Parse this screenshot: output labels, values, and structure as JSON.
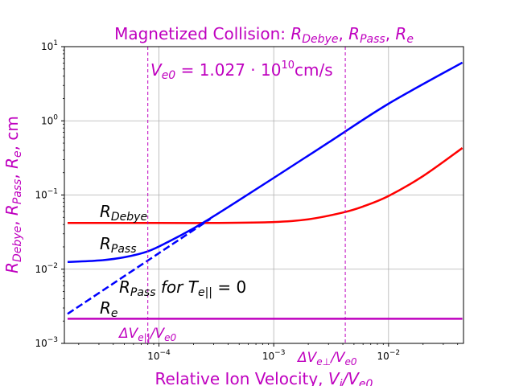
{
  "chart_data": {
    "type": "line",
    "title": "Magnetized Collision: R_Debye, R_Pass, R_e",
    "xlabel": "Relative Ion Velocity, V_i/V_e0",
    "ylabel": "R_Debye, R_Pass, R_e, cm",
    "xscale": "log",
    "yscale": "log",
    "xlim": [
      1.5e-05,
      0.045
    ],
    "ylim": [
      0.001,
      10
    ],
    "grid": true,
    "x_ticks": [
      {
        "value": 0.0001,
        "base": "10",
        "exp": "−4"
      },
      {
        "value": 0.001,
        "base": "10",
        "exp": "−3"
      },
      {
        "value": 0.01,
        "base": "10",
        "exp": "−2"
      }
    ],
    "y_ticks": [
      {
        "value": 0.001,
        "base": "10",
        "exp": "−3"
      },
      {
        "value": 0.01,
        "base": "10",
        "exp": "−2"
      },
      {
        "value": 0.1,
        "base": "10",
        "exp": "−1"
      },
      {
        "value": 1,
        "base": "10",
        "exp": "0"
      },
      {
        "value": 10,
        "base": "10",
        "exp": "1"
      }
    ],
    "series": [
      {
        "id": "r-debye",
        "color": "#ff0000",
        "style": "solid",
        "x": [
          1.6e-05,
          0.0001,
          0.0003,
          0.001,
          0.002,
          0.004,
          0.006,
          0.01,
          0.02,
          0.044
        ],
        "y": [
          0.042,
          0.042,
          0.042,
          0.0432,
          0.047,
          0.058,
          0.07,
          0.097,
          0.18,
          0.43
        ]
      },
      {
        "id": "r-pass",
        "color": "#0000ff",
        "style": "solid",
        "x": [
          1.6e-05,
          3e-05,
          5e-05,
          8e-05,
          0.00012,
          0.0002,
          0.0003,
          0.0005,
          0.001,
          0.003,
          0.01,
          0.044
        ],
        "y": [
          0.0125,
          0.0131,
          0.0145,
          0.0174,
          0.0233,
          0.0355,
          0.0518,
          0.0854,
          0.17,
          0.51,
          1.7,
          6.1
        ]
      },
      {
        "id": "r-pass-t0",
        "color": "#0000ff",
        "style": "dashed",
        "x": [
          1.6e-05,
          0.00028
        ],
        "y": [
          0.0025,
          0.0475
        ]
      },
      {
        "id": "r-e",
        "color": "#bf00bf",
        "style": "solid",
        "x": [
          1.6e-05,
          0.044
        ],
        "y": [
          0.00215,
          0.00215
        ]
      }
    ],
    "vlines": [
      {
        "id": "dv-par",
        "x": 8e-05,
        "color": "#bf00bf"
      },
      {
        "id": "dv-perp",
        "x": 0.0042,
        "color": "#bf00bf"
      }
    ],
    "annotations": {
      "ve0": "V_e0 = 1.027·10^10 cm/s",
      "r_debye": "R_Debye",
      "r_pass": "R_Pass",
      "r_pass_t0": "R_Pass for T_e|| = 0",
      "r_e": "R_e",
      "dv_par": "ΔV_e||/V_e0",
      "dv_perp": "ΔV_e⊥/V_e0"
    }
  }
}
